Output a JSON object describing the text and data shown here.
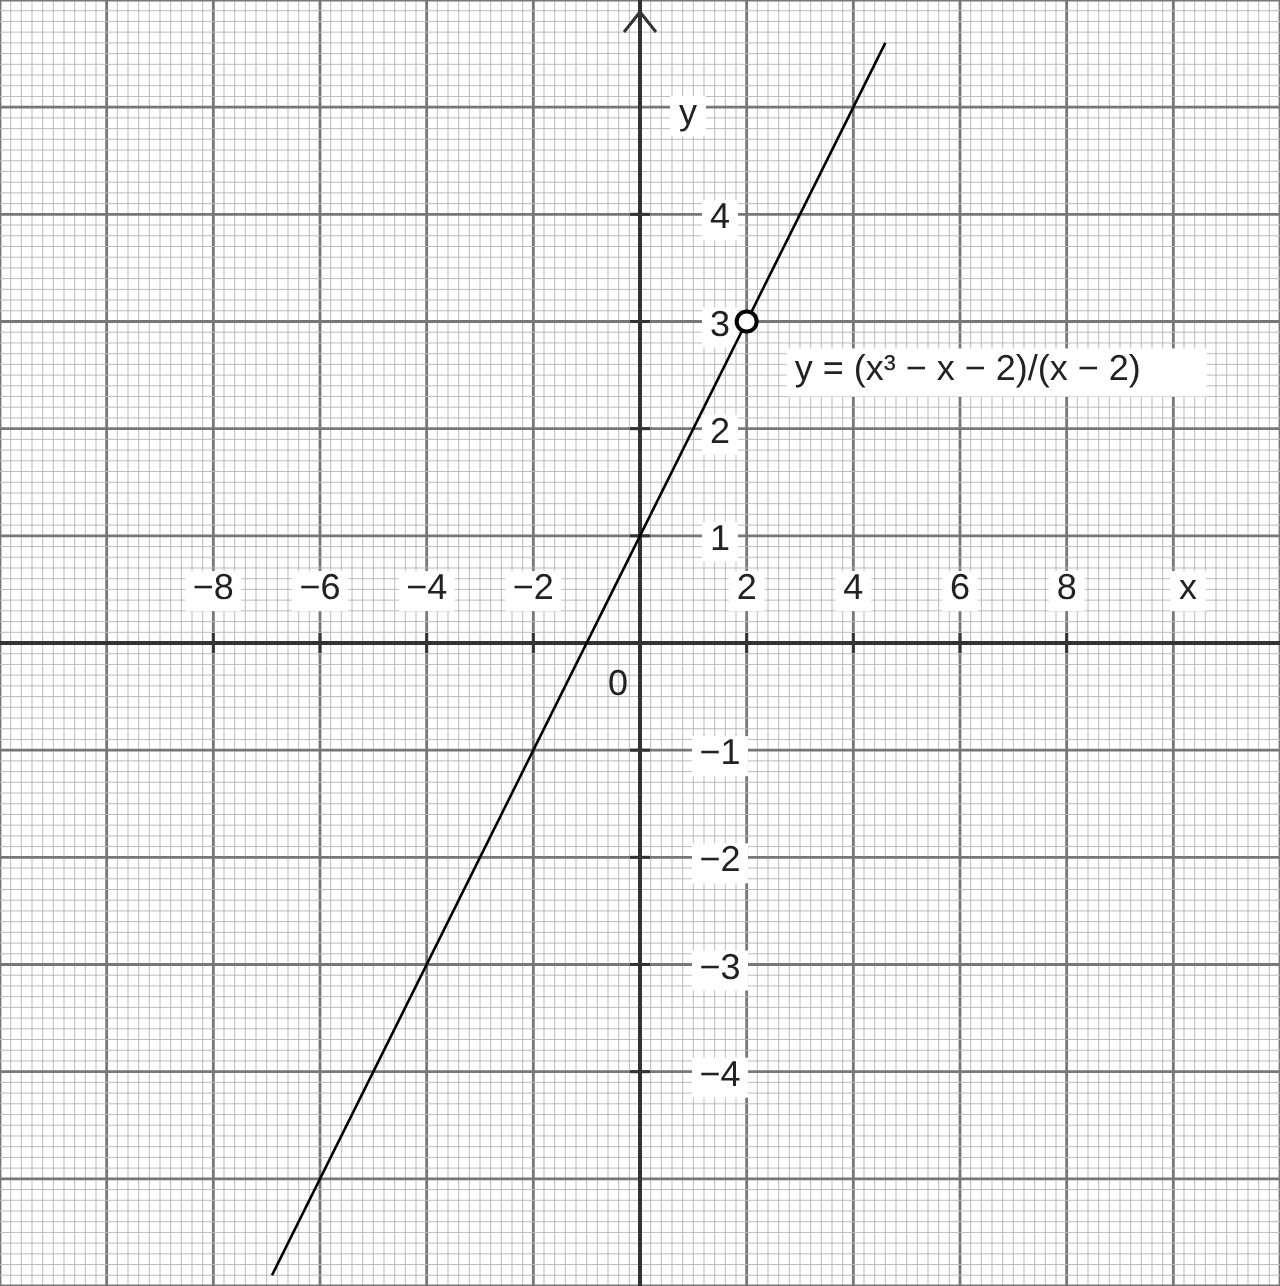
{
  "chart_data": {
    "type": "line",
    "xlabel": "x",
    "ylabel": "y",
    "xlim": [
      -12,
      12
    ],
    "ylim": [
      -6,
      6
    ],
    "xticks": [
      -8,
      -6,
      -4,
      -2,
      2,
      4,
      6,
      8
    ],
    "yticks": [
      -4,
      -3,
      -2,
      -1,
      1,
      2,
      3,
      4
    ],
    "grid": true,
    "line_style": "solid",
    "series": [
      {
        "x": [
          -6.9,
          4.6
        ],
        "values": [
          -5.9,
          5.6
        ],
        "color": "#000000"
      },
      {
        "type": "scatter",
        "x": [
          2
        ],
        "values": [
          3
        ],
        "color": "#000000",
        "marker": "circle"
      }
    ],
    "annotations": [
      "0",
      "y = (x³ − x − 2)/(x − 2)"
    ]
  }
}
